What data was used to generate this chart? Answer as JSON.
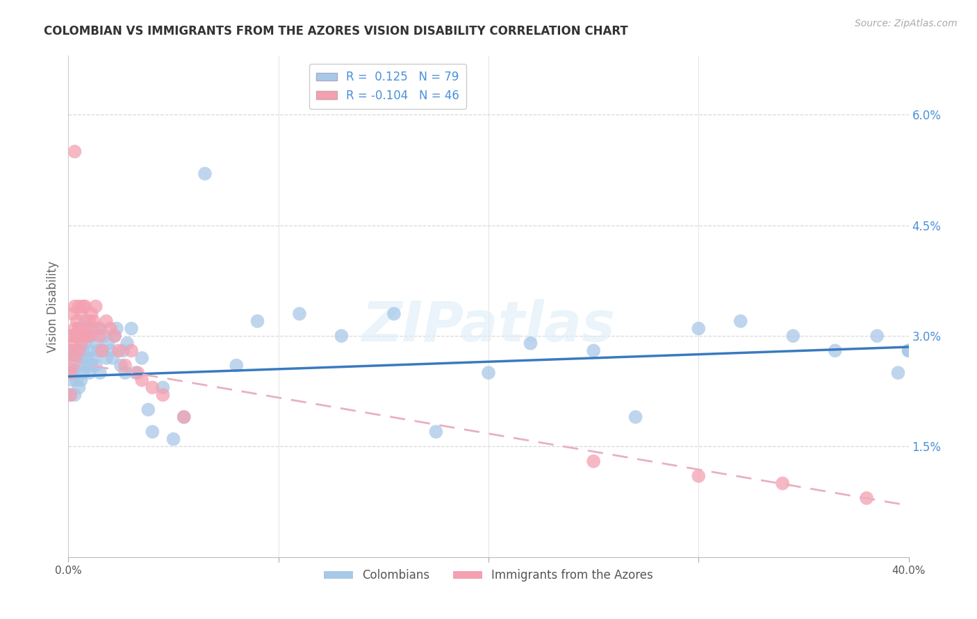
{
  "title": "COLOMBIAN VS IMMIGRANTS FROM THE AZORES VISION DISABILITY CORRELATION CHART",
  "source": "Source: ZipAtlas.com",
  "ylabel": "Vision Disability",
  "xmin": 0.0,
  "xmax": 0.4,
  "ymin": 0.0,
  "ymax": 0.068,
  "yticks": [
    0.015,
    0.03,
    0.045,
    0.06
  ],
  "ytick_labels": [
    "1.5%",
    "3.0%",
    "4.5%",
    "6.0%"
  ],
  "xticks": [
    0.0,
    0.1,
    0.2,
    0.3,
    0.4
  ],
  "xtick_labels": [
    "0.0%",
    "",
    "",
    "",
    "40.0%"
  ],
  "series1_name": "Colombians",
  "series1_color": "#a8c8e8",
  "series1_R": 0.125,
  "series1_N": 79,
  "series2_name": "Immigrants from the Azores",
  "series2_color": "#f4a0b0",
  "series2_R": -0.104,
  "series2_N": 46,
  "blue_line_color": "#3a7abf",
  "pink_line_color": "#e8b0c0",
  "watermark": "ZIPatlas",
  "background": "#ffffff",
  "grid_color": "#d8d8d8",
  "title_color": "#333333",
  "tick_label_color": "#4a90d9",
  "colombians_x": [
    0.001,
    0.001,
    0.001,
    0.002,
    0.002,
    0.002,
    0.002,
    0.003,
    0.003,
    0.003,
    0.003,
    0.004,
    0.004,
    0.004,
    0.005,
    0.005,
    0.005,
    0.005,
    0.006,
    0.006,
    0.006,
    0.007,
    0.007,
    0.007,
    0.008,
    0.008,
    0.008,
    0.009,
    0.009,
    0.01,
    0.01,
    0.011,
    0.011,
    0.012,
    0.012,
    0.013,
    0.013,
    0.014,
    0.015,
    0.015,
    0.016,
    0.017,
    0.018,
    0.019,
    0.02,
    0.021,
    0.022,
    0.023,
    0.025,
    0.026,
    0.027,
    0.028,
    0.03,
    0.032,
    0.035,
    0.038,
    0.04,
    0.045,
    0.05,
    0.055,
    0.065,
    0.08,
    0.09,
    0.11,
    0.13,
    0.155,
    0.175,
    0.2,
    0.22,
    0.25,
    0.27,
    0.3,
    0.32,
    0.345,
    0.365,
    0.385,
    0.395,
    0.4,
    0.4
  ],
  "colombians_y": [
    0.026,
    0.028,
    0.022,
    0.024,
    0.027,
    0.025,
    0.03,
    0.022,
    0.028,
    0.025,
    0.03,
    0.024,
    0.027,
    0.03,
    0.023,
    0.026,
    0.028,
    0.031,
    0.024,
    0.027,
    0.03,
    0.025,
    0.028,
    0.031,
    0.026,
    0.029,
    0.032,
    0.027,
    0.03,
    0.025,
    0.028,
    0.026,
    0.03,
    0.027,
    0.031,
    0.026,
    0.029,
    0.028,
    0.025,
    0.031,
    0.028,
    0.03,
    0.027,
    0.029,
    0.028,
    0.027,
    0.03,
    0.031,
    0.026,
    0.028,
    0.025,
    0.029,
    0.031,
    0.025,
    0.027,
    0.02,
    0.017,
    0.023,
    0.016,
    0.019,
    0.052,
    0.026,
    0.032,
    0.033,
    0.03,
    0.033,
    0.017,
    0.025,
    0.029,
    0.028,
    0.019,
    0.031,
    0.032,
    0.03,
    0.028,
    0.03,
    0.025,
    0.028,
    0.028
  ],
  "azores_x": [
    0.001,
    0.001,
    0.001,
    0.001,
    0.002,
    0.002,
    0.002,
    0.003,
    0.003,
    0.003,
    0.003,
    0.004,
    0.004,
    0.005,
    0.005,
    0.005,
    0.006,
    0.006,
    0.007,
    0.007,
    0.008,
    0.008,
    0.009,
    0.01,
    0.01,
    0.011,
    0.012,
    0.013,
    0.014,
    0.015,
    0.016,
    0.018,
    0.02,
    0.022,
    0.024,
    0.027,
    0.03,
    0.033,
    0.035,
    0.04,
    0.045,
    0.055,
    0.25,
    0.3,
    0.34,
    0.38
  ],
  "azores_y": [
    0.025,
    0.028,
    0.03,
    0.022,
    0.026,
    0.029,
    0.033,
    0.027,
    0.031,
    0.034,
    0.055,
    0.03,
    0.032,
    0.028,
    0.031,
    0.034,
    0.029,
    0.033,
    0.03,
    0.034,
    0.031,
    0.034,
    0.03,
    0.032,
    0.03,
    0.033,
    0.032,
    0.034,
    0.031,
    0.03,
    0.028,
    0.032,
    0.031,
    0.03,
    0.028,
    0.026,
    0.028,
    0.025,
    0.024,
    0.023,
    0.022,
    0.019,
    0.013,
    0.011,
    0.01,
    0.008
  ]
}
